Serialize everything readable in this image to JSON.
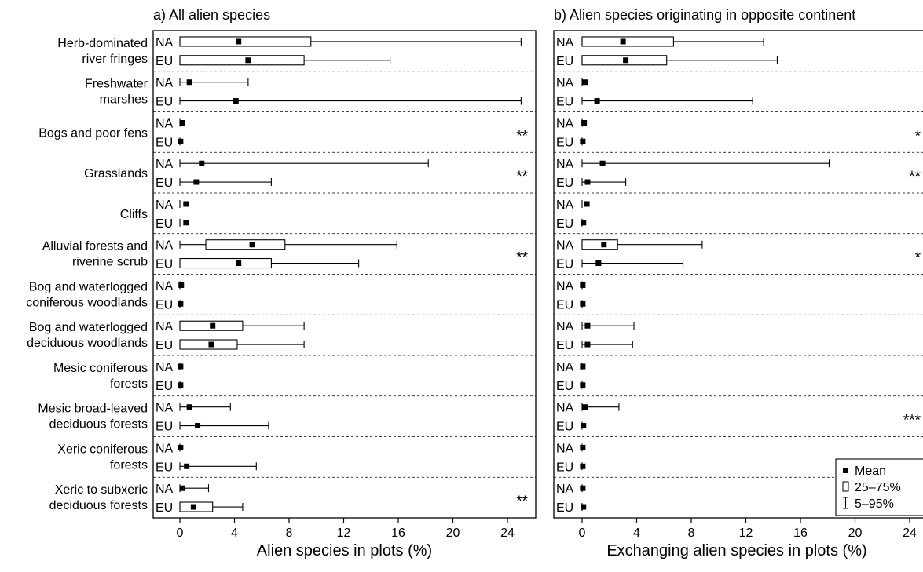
{
  "chart_data": [
    {
      "type": "box",
      "title": "a) All alien species",
      "xlabel": "Alien species in plots (%)",
      "xlim": [
        -2,
        26
      ],
      "xticks": [
        0,
        4,
        8,
        12,
        16,
        20,
        24
      ],
      "series_labels": [
        "NA",
        "EU"
      ],
      "groups": [
        {
          "label": [
            "Herb-dominated",
            "river fringes"
          ],
          "sig": "",
          "rows": [
            {
              "mean": 4.3,
              "q1": 0,
              "q3": 9.6,
              "p5": 0,
              "p95": 25
            },
            {
              "mean": 5.0,
              "q1": 0,
              "q3": 9.1,
              "p5": 0,
              "p95": 15.4
            }
          ]
        },
        {
          "label": [
            "Freshwater",
            "marshes"
          ],
          "sig": "",
          "rows": [
            {
              "mean": 0.7,
              "q1": 0,
              "q3": 0,
              "p5": 0,
              "p95": 5.0
            },
            {
              "mean": 4.1,
              "q1": 0,
              "q3": 0,
              "p5": 0,
              "p95": 25
            }
          ]
        },
        {
          "label": [
            "Bogs and poor fens"
          ],
          "sig": "**",
          "rows": [
            {
              "mean": 0.2,
              "q1": 0,
              "q3": 0,
              "p5": 0,
              "p95": 0
            },
            {
              "mean": 0.05,
              "q1": 0,
              "q3": 0,
              "p5": 0,
              "p95": 0
            }
          ]
        },
        {
          "label": [
            "Grasslands"
          ],
          "sig": "**",
          "rows": [
            {
              "mean": 1.6,
              "q1": 0,
              "q3": 0,
              "p5": 0,
              "p95": 18.2
            },
            {
              "mean": 1.2,
              "q1": 0,
              "q3": 0,
              "p5": 0,
              "p95": 6.7
            }
          ]
        },
        {
          "label": [
            "Cliffs"
          ],
          "sig": "",
          "rows": [
            {
              "mean": 0.45,
              "q1": 0,
              "q3": 0,
              "p5": 0,
              "p95": 0
            },
            {
              "mean": 0.45,
              "q1": 0,
              "q3": 0,
              "p5": 0,
              "p95": 0
            }
          ]
        },
        {
          "label": [
            "Alluvial forests and",
            "riverine scrub"
          ],
          "sig": "**",
          "rows": [
            {
              "mean": 5.3,
              "q1": 1.9,
              "q3": 7.7,
              "p5": 0,
              "p95": 15.9
            },
            {
              "mean": 4.3,
              "q1": 0,
              "q3": 6.7,
              "p5": 0,
              "p95": 13.1
            }
          ]
        },
        {
          "label": [
            "Bog and waterlogged",
            "coniferous woodlands"
          ],
          "sig": "",
          "rows": [
            {
              "mean": 0.1,
              "q1": 0,
              "q3": 0,
              "p5": 0,
              "p95": 0
            },
            {
              "mean": 0.05,
              "q1": 0,
              "q3": 0,
              "p5": 0,
              "p95": 0
            }
          ]
        },
        {
          "label": [
            "Bog and waterlogged",
            "deciduous woodlands"
          ],
          "sig": "",
          "rows": [
            {
              "mean": 2.4,
              "q1": 0,
              "q3": 4.6,
              "p5": 0,
              "p95": 9.1
            },
            {
              "mean": 2.3,
              "q1": 0,
              "q3": 4.2,
              "p5": 0,
              "p95": 9.1
            }
          ]
        },
        {
          "label": [
            "Mesic coniferous",
            "forests"
          ],
          "sig": "",
          "rows": [
            {
              "mean": 0.05,
              "q1": 0,
              "q3": 0,
              "p5": 0,
              "p95": 0
            },
            {
              "mean": 0.05,
              "q1": 0,
              "q3": 0,
              "p5": 0,
              "p95": 0
            }
          ]
        },
        {
          "label": [
            "Mesic broad-leaved",
            "deciduous forests"
          ],
          "sig": "",
          "rows": [
            {
              "mean": 0.7,
              "q1": 0,
              "q3": 0,
              "p5": 0,
              "p95": 3.7
            },
            {
              "mean": 1.3,
              "q1": 0,
              "q3": 0,
              "p5": 0,
              "p95": 6.5
            }
          ]
        },
        {
          "label": [
            "Xeric coniferous",
            "forests"
          ],
          "sig": "",
          "rows": [
            {
              "mean": 0.05,
              "q1": 0,
              "q3": 0,
              "p5": 0,
              "p95": 0
            },
            {
              "mean": 0.5,
              "q1": 0,
              "q3": 0,
              "p5": 0,
              "p95": 5.6
            }
          ]
        },
        {
          "label": [
            "Xeric to subxeric",
            "deciduous forests"
          ],
          "sig": "**",
          "rows": [
            {
              "mean": 0.2,
              "q1": 0,
              "q3": 0,
              "p5": 0,
              "p95": 2.1
            },
            {
              "mean": 1.0,
              "q1": 0,
              "q3": 2.4,
              "p5": 0,
              "p95": 4.6
            }
          ]
        }
      ]
    },
    {
      "type": "box",
      "title": "b) Alien species originating in opposite continent",
      "xlabel": "Exchanging alien species in plots (%)",
      "xlim": [
        -2,
        26
      ],
      "xticks": [
        0,
        4,
        8,
        12,
        16,
        20,
        24
      ],
      "series_labels": [
        "NA",
        "EU"
      ],
      "legend": {
        "placement": "bottom-right",
        "entries": [
          "Mean",
          "25–75%",
          "5–95%"
        ]
      },
      "groups": [
        {
          "sig": "",
          "rows": [
            {
              "mean": 3.0,
              "q1": 0,
              "q3": 6.7,
              "p5": 0,
              "p95": 13.3
            },
            {
              "mean": 3.2,
              "q1": 0,
              "q3": 6.2,
              "p5": 0,
              "p95": 14.3
            }
          ]
        },
        {
          "sig": "",
          "rows": [
            {
              "mean": 0.2,
              "q1": 0,
              "q3": 0,
              "p5": 0,
              "p95": 0
            },
            {
              "mean": 1.1,
              "q1": 0,
              "q3": 0,
              "p5": 0,
              "p95": 12.5
            }
          ]
        },
        {
          "sig": "*",
          "rows": [
            {
              "mean": 0.15,
              "q1": 0,
              "q3": 0,
              "p5": 0,
              "p95": 0
            },
            {
              "mean": 0.05,
              "q1": 0,
              "q3": 0,
              "p5": 0,
              "p95": 0
            }
          ]
        },
        {
          "sig": "**",
          "rows": [
            {
              "mean": 1.5,
              "q1": 0,
              "q3": 0,
              "p5": 0,
              "p95": 18.1
            },
            {
              "mean": 0.4,
              "q1": 0,
              "q3": 0,
              "p5": 0,
              "p95": 3.2
            }
          ]
        },
        {
          "sig": "",
          "rows": [
            {
              "mean": 0.35,
              "q1": 0,
              "q3": 0,
              "p5": 0,
              "p95": 0
            },
            {
              "mean": 0.1,
              "q1": 0,
              "q3": 0,
              "p5": 0,
              "p95": 0
            }
          ]
        },
        {
          "sig": "*",
          "rows": [
            {
              "mean": 1.6,
              "q1": 0,
              "q3": 2.6,
              "p5": 0,
              "p95": 8.8
            },
            {
              "mean": 1.2,
              "q1": 0,
              "q3": 0,
              "p5": 0,
              "p95": 7.4
            }
          ]
        },
        {
          "sig": "",
          "rows": [
            {
              "mean": 0.05,
              "q1": 0,
              "q3": 0,
              "p5": 0,
              "p95": 0
            },
            {
              "mean": 0.05,
              "q1": 0,
              "q3": 0,
              "p5": 0,
              "p95": 0
            }
          ]
        },
        {
          "sig": "",
          "rows": [
            {
              "mean": 0.4,
              "q1": 0,
              "q3": 0,
              "p5": 0,
              "p95": 3.8
            },
            {
              "mean": 0.4,
              "q1": 0,
              "q3": 0,
              "p5": 0,
              "p95": 3.7
            }
          ]
        },
        {
          "sig": "",
          "rows": [
            {
              "mean": 0.05,
              "q1": 0,
              "q3": 0,
              "p5": 0,
              "p95": 0
            },
            {
              "mean": 0.05,
              "q1": 0,
              "q3": 0,
              "p5": 0,
              "p95": 0
            }
          ]
        },
        {
          "sig": "***",
          "rows": [
            {
              "mean": 0.2,
              "q1": 0,
              "q3": 0,
              "p5": 0,
              "p95": 2.7
            },
            {
              "mean": 0.1,
              "q1": 0,
              "q3": 0,
              "p5": 0,
              "p95": 0
            }
          ]
        },
        {
          "sig": "",
          "rows": [
            {
              "mean": 0.05,
              "q1": 0,
              "q3": 0,
              "p5": 0,
              "p95": 0
            },
            {
              "mean": 0.05,
              "q1": 0,
              "q3": 0,
              "p5": 0,
              "p95": 0
            }
          ]
        },
        {
          "sig": "",
          "rows": [
            {
              "mean": 0.05,
              "q1": 0,
              "q3": 0,
              "p5": 0,
              "p95": 0
            },
            {
              "mean": 0.1,
              "q1": 0,
              "q3": 0,
              "p5": 0,
              "p95": 0
            }
          ]
        }
      ]
    }
  ]
}
